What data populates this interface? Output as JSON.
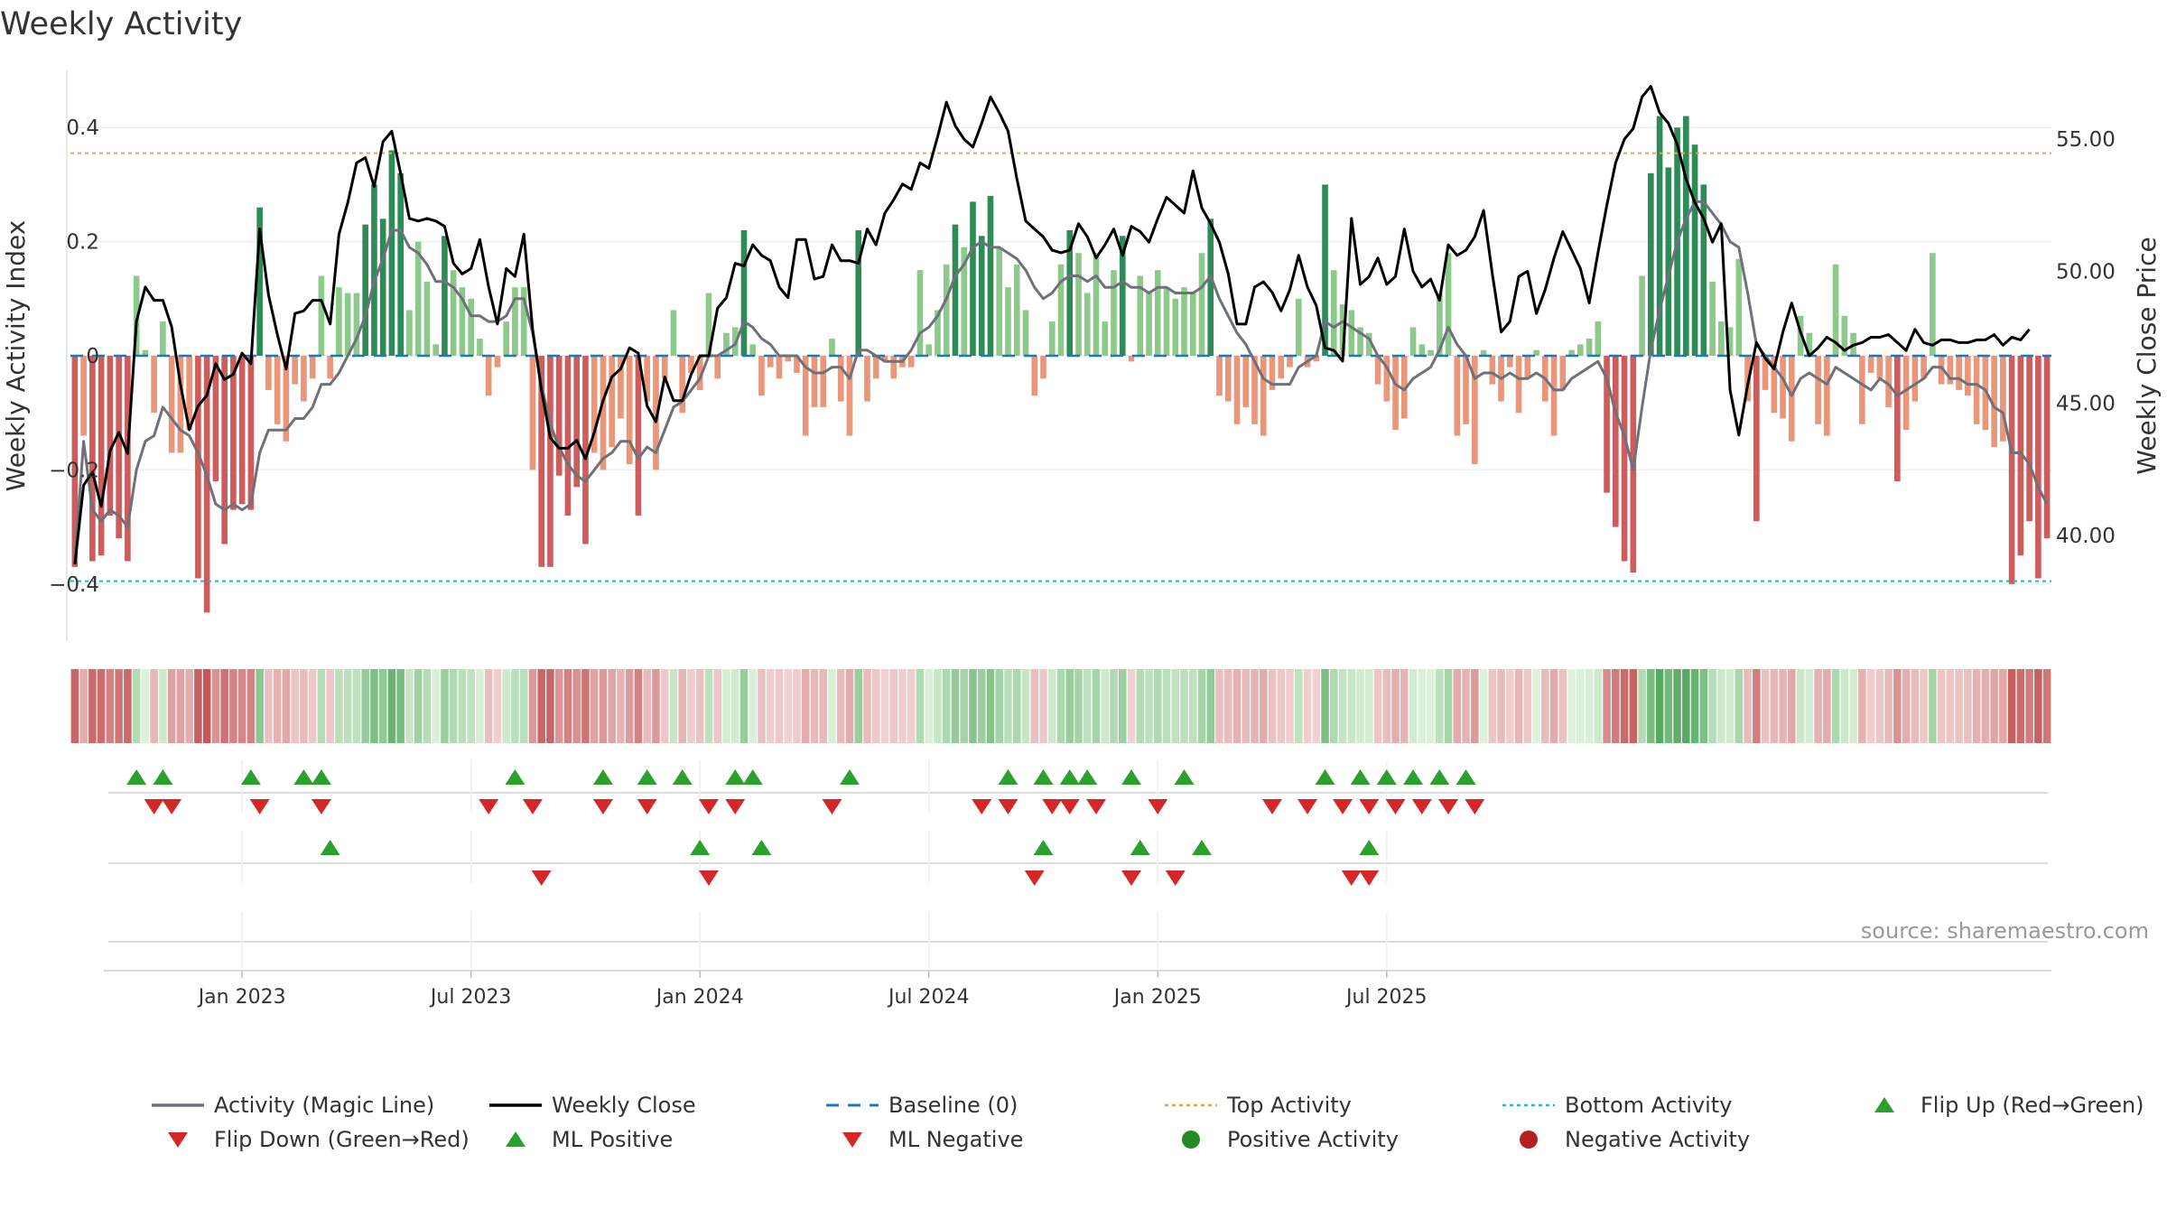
{
  "chart_data": {
    "type": "bar",
    "title": "Weekly Activity",
    "ylabel": "Weekly Activity Index",
    "y2label": "Weekly Close Price",
    "ylim": [
      -0.5,
      0.5
    ],
    "y2lim": [
      36.0,
      57.6
    ],
    "yticks": [
      {
        "v": 0.4,
        "label": "0.4"
      },
      {
        "v": 0.2,
        "label": "0.2"
      },
      {
        "v": 0,
        "label": "0"
      },
      {
        "v": -0.2,
        "label": "−0.2"
      },
      {
        "v": -0.4,
        "label": "−0.4"
      }
    ],
    "y2ticks": [
      {
        "v": 55,
        "label": "55.00"
      },
      {
        "v": 50,
        "label": "50.00"
      },
      {
        "v": 45,
        "label": "45.00"
      },
      {
        "v": 40,
        "label": "40.00"
      }
    ],
    "xticks": [
      {
        "week": 19,
        "label": "Jan 2023"
      },
      {
        "week": 45,
        "label": "Jul 2023"
      },
      {
        "week": 71,
        "label": "Jan 2024"
      },
      {
        "week": 97,
        "label": "Jul 2024"
      },
      {
        "week": 123,
        "label": "Jan 2025"
      },
      {
        "week": 149,
        "label": "Jul 2025"
      }
    ],
    "top_activity": 0.355,
    "bottom_activity": -0.395,
    "activity": [
      -0.37,
      -0.14,
      -0.36,
      -0.35,
      -0.28,
      -0.32,
      -0.36,
      0.14,
      0.01,
      -0.1,
      0.06,
      -0.17,
      -0.17,
      -0.13,
      -0.39,
      -0.45,
      -0.22,
      -0.33,
      -0.27,
      -0.26,
      -0.27,
      0.26,
      -0.06,
      -0.12,
      -0.15,
      -0.05,
      -0.08,
      -0.04,
      0.14,
      -0.04,
      0.12,
      0.11,
      0.11,
      0.23,
      0.3,
      0.24,
      0.36,
      0.32,
      0.08,
      0.2,
      0.13,
      0.02,
      0.21,
      0.15,
      0.12,
      0.1,
      0.03,
      -0.07,
      -0.02,
      0.06,
      0.12,
      0.12,
      -0.2,
      -0.37,
      -0.37,
      -0.21,
      -0.28,
      -0.23,
      -0.33,
      -0.17,
      -0.2,
      -0.16,
      -0.11,
      -0.19,
      -0.28,
      -0.08,
      -0.2,
      -0.04,
      0.08,
      -0.1,
      -0.03,
      -0.06,
      0.11,
      -0.04,
      0.04,
      0.05,
      0.22,
      0.02,
      -0.07,
      -0.02,
      -0.04,
      -0.01,
      -0.03,
      -0.14,
      -0.09,
      -0.09,
      0.03,
      -0.08,
      -0.14,
      0.22,
      -0.08,
      -0.04,
      -0.01,
      -0.04,
      -0.02,
      -0.02,
      0.15,
      0.02,
      0.08,
      0.16,
      0.23,
      0.19,
      0.27,
      0.21,
      0.28,
      0.19,
      0.12,
      0.16,
      0.08,
      -0.07,
      -0.04,
      0.06,
      0.16,
      0.22,
      0.18,
      0.11,
      0.18,
      0.06,
      0.15,
      0.21,
      -0.01,
      0.14,
      0.11,
      0.15,
      0.12,
      0.1,
      0.12,
      0.11,
      0.18,
      0.24,
      -0.07,
      -0.08,
      -0.12,
      -0.09,
      -0.12,
      -0.14,
      -0.06,
      -0.04,
      -0.02,
      0.1,
      -0.02,
      -0.01,
      0.3,
      0.15,
      0.09,
      0.08,
      0.05,
      0.04,
      -0.05,
      -0.08,
      -0.13,
      -0.11,
      0.05,
      0.02,
      0.01,
      0.11,
      0.18,
      -0.14,
      -0.12,
      -0.19,
      0.01,
      -0.05,
      -0.08,
      -0.02,
      -0.1,
      -0.04,
      0.01,
      -0.08,
      -0.14,
      -0.06,
      0.01,
      0.02,
      0.03,
      0.06,
      -0.24,
      -0.3,
      -0.36,
      -0.38,
      0.14,
      0.32,
      0.42,
      0.33,
      0.4,
      0.42,
      0.37,
      0.3,
      0.13,
      0.06,
      0.05,
      0.17,
      -0.08,
      -0.29,
      -0.06,
      -0.1,
      -0.11,
      -0.15,
      0.07,
      0.04,
      -0.12,
      -0.14,
      0.16,
      0.07,
      0.04,
      -0.12,
      -0.03,
      -0.04,
      -0.09,
      -0.22,
      -0.13,
      -0.08,
      -0.04,
      0.18,
      -0.05,
      -0.05,
      -0.06,
      -0.07,
      -0.12,
      -0.13,
      -0.16,
      -0.15,
      -0.4,
      -0.35,
      -0.29,
      -0.39,
      -0.32
    ],
    "magic_line": [
      -0.36,
      -0.15,
      -0.27,
      -0.29,
      -0.27,
      -0.28,
      -0.3,
      -0.2,
      -0.15,
      -0.14,
      -0.09,
      -0.11,
      -0.13,
      -0.14,
      -0.17,
      -0.21,
      -0.26,
      -0.27,
      -0.26,
      -0.27,
      -0.26,
      -0.17,
      -0.13,
      -0.13,
      -0.13,
      -0.11,
      -0.11,
      -0.09,
      -0.05,
      -0.05,
      -0.03,
      0.0,
      0.03,
      0.07,
      0.13,
      0.17,
      0.22,
      0.22,
      0.19,
      0.18,
      0.16,
      0.13,
      0.13,
      0.12,
      0.1,
      0.07,
      0.07,
      0.06,
      0.06,
      0.07,
      0.1,
      0.1,
      0.04,
      -0.05,
      -0.12,
      -0.16,
      -0.19,
      -0.21,
      -0.22,
      -0.2,
      -0.18,
      -0.17,
      -0.15,
      -0.15,
      -0.18,
      -0.16,
      -0.17,
      -0.13,
      -0.09,
      -0.08,
      -0.06,
      -0.04,
      0.0,
      0.0,
      0.01,
      0.02,
      0.06,
      0.05,
      0.03,
      0.02,
      0.0,
      0.0,
      0.0,
      -0.02,
      -0.03,
      -0.03,
      -0.02,
      -0.02,
      -0.04,
      0.01,
      0.01,
      0.0,
      -0.01,
      -0.01,
      -0.01,
      0.01,
      0.04,
      0.05,
      0.07,
      0.1,
      0.14,
      0.16,
      0.19,
      0.2,
      0.19,
      0.19,
      0.18,
      0.17,
      0.15,
      0.12,
      0.1,
      0.11,
      0.13,
      0.14,
      0.14,
      0.13,
      0.14,
      0.12,
      0.12,
      0.13,
      0.12,
      0.12,
      0.11,
      0.12,
      0.12,
      0.11,
      0.11,
      0.11,
      0.12,
      0.14,
      0.1,
      0.07,
      0.04,
      0.02,
      -0.01,
      -0.04,
      -0.05,
      -0.05,
      -0.05,
      -0.02,
      -0.01,
      0.0,
      0.06,
      0.05,
      0.06,
      0.05,
      0.04,
      0.03,
      0.0,
      -0.02,
      -0.05,
      -0.06,
      -0.04,
      -0.03,
      -0.02,
      0.01,
      0.05,
      0.02,
      0.0,
      -0.04,
      -0.03,
      -0.03,
      -0.04,
      -0.03,
      -0.04,
      -0.04,
      -0.03,
      -0.04,
      -0.06,
      -0.06,
      -0.04,
      -0.03,
      -0.02,
      -0.01,
      -0.04,
      -0.1,
      -0.14,
      -0.2,
      -0.09,
      0.01,
      0.08,
      0.14,
      0.2,
      0.24,
      0.27,
      0.27,
      0.25,
      0.23,
      0.2,
      0.19,
      0.11,
      0.02,
      0.0,
      -0.02,
      -0.04,
      -0.07,
      -0.04,
      -0.03,
      -0.04,
      -0.05,
      -0.02,
      -0.03,
      -0.04,
      -0.05,
      -0.06,
      -0.04,
      -0.05,
      -0.07,
      -0.06,
      -0.05,
      -0.04,
      -0.02,
      -0.02,
      -0.04,
      -0.04,
      -0.05,
      -0.05,
      -0.06,
      -0.09,
      -0.1,
      -0.17,
      -0.17,
      -0.19,
      -0.23,
      -0.26
    ],
    "weekly_close": [
      38.9,
      41.9,
      42.4,
      41.1,
      43.2,
      43.9,
      43.1,
      48.1,
      49.4,
      48.9,
      48.9,
      47.9,
      45.7,
      44.0,
      44.9,
      45.3,
      46.5,
      45.9,
      46.1,
      46.9,
      46.5,
      51.6,
      49.1,
      47.6,
      46.3,
      48.4,
      48.5,
      48.9,
      48.9,
      48.0,
      51.4,
      52.6,
      54.1,
      54.3,
      53.2,
      54.9,
      55.3,
      53.7,
      52.0,
      51.9,
      52.0,
      51.9,
      51.7,
      50.3,
      49.9,
      50.1,
      51.2,
      49.4,
      48.0,
      50.1,
      49.8,
      51.4,
      47.8,
      45.5,
      43.7,
      43.3,
      43.3,
      43.6,
      42.9,
      43.9,
      45.1,
      46.0,
      46.3,
      47.1,
      46.9,
      44.9,
      44.3,
      46.0,
      45.1,
      45.1,
      46.1,
      46.8,
      46.8,
      48.6,
      49.0,
      50.3,
      50.2,
      51.0,
      50.6,
      50.4,
      49.4,
      49.0,
      51.2,
      51.2,
      49.7,
      49.8,
      51.0,
      50.4,
      50.4,
      50.3,
      51.6,
      51.0,
      52.2,
      52.7,
      53.3,
      53.1,
      54.1,
      53.9,
      55.1,
      56.4,
      55.5,
      55.0,
      54.7,
      55.6,
      56.6,
      56.0,
      55.3,
      53.5,
      51.9,
      51.6,
      51.3,
      50.8,
      50.7,
      50.8,
      51.8,
      51.3,
      50.5,
      51.0,
      51.6,
      50.6,
      51.7,
      51.5,
      51.1,
      52.0,
      52.8,
      52.5,
      52.2,
      53.8,
      52.4,
      51.8,
      51.1,
      49.9,
      48.0,
      48.0,
      49.4,
      49.6,
      49.2,
      48.5,
      49.3,
      50.6,
      49.4,
      48.7,
      47.1,
      47.0,
      46.6,
      52.0,
      49.5,
      49.8,
      50.5,
      49.5,
      49.8,
      51.6,
      50.0,
      49.4,
      49.7,
      48.9,
      51.0,
      50.6,
      50.8,
      51.3,
      52.3,
      49.9,
      47.7,
      48.1,
      49.8,
      50.0,
      48.4,
      49.3,
      50.5,
      51.5,
      50.8,
      50.1,
      48.8,
      50.7,
      52.5,
      54.1,
      55.0,
      55.4,
      56.6,
      57.0,
      56.0,
      55.6,
      54.8,
      53.5,
      52.6,
      52.0,
      51.1,
      51.8,
      45.5,
      43.8,
      45.7,
      47.3,
      46.7,
      46.3,
      47.7,
      48.8,
      47.7,
      46.8,
      47.1,
      47.5,
      47.3,
      47.0,
      47.2,
      47.3,
      47.5,
      47.5,
      47.6,
      47.3,
      47.0,
      47.8,
      47.3,
      47.2,
      47.4,
      47.4,
      47.3,
      47.3,
      47.4,
      47.4,
      47.6,
      47.2,
      47.5,
      47.4,
      47.8
    ],
    "flip_up_weeks": [
      7,
      10,
      20,
      26,
      28,
      50,
      60,
      65,
      69,
      75,
      77,
      88,
      106,
      110,
      113,
      115,
      120,
      126,
      142,
      146,
      149,
      152,
      155,
      158
    ],
    "flip_down_weeks": [
      9,
      11,
      21,
      28,
      47,
      52,
      60,
      65,
      72,
      75,
      86,
      103,
      106,
      111,
      113,
      116,
      123,
      136,
      140,
      144,
      147,
      150,
      153,
      156,
      159
    ],
    "ml_positive_weeks": [
      29,
      71,
      78,
      110,
      121,
      128,
      147
    ],
    "ml_negative_weeks": [
      53,
      72,
      109,
      120,
      125,
      145,
      147
    ],
    "source": "source: sharemaestro.com",
    "legend": [
      {
        "label": "Activity (Magic Line)",
        "symbol": "line",
        "color": "#6e7179"
      },
      {
        "label": "Weekly Close",
        "symbol": "line",
        "color": "#000000"
      },
      {
        "label": "Baseline (0)",
        "symbol": "dashed",
        "color": "#1f77b4"
      },
      {
        "label": "Top Activity",
        "symbol": "dotted",
        "color": "#e8a24a"
      },
      {
        "label": "Bottom Activity",
        "symbol": "dotted",
        "color": "#17becf"
      },
      {
        "label": "Flip Up (Red→Green)",
        "symbol": "triangle-up",
        "color": "#2ca02c"
      },
      {
        "label": "Flip Down (Green→Red)",
        "symbol": "triangle-down",
        "color": "#d62728"
      },
      {
        "label": "ML Positive",
        "symbol": "triangle-up",
        "color": "#2ca02c"
      },
      {
        "label": "ML Negative",
        "symbol": "triangle-down",
        "color": "#d62728"
      },
      {
        "label": "Positive Activity",
        "symbol": "circle",
        "color": "#228b22"
      },
      {
        "label": "Negative Activity",
        "symbol": "circle",
        "color": "#b22222"
      }
    ]
  }
}
